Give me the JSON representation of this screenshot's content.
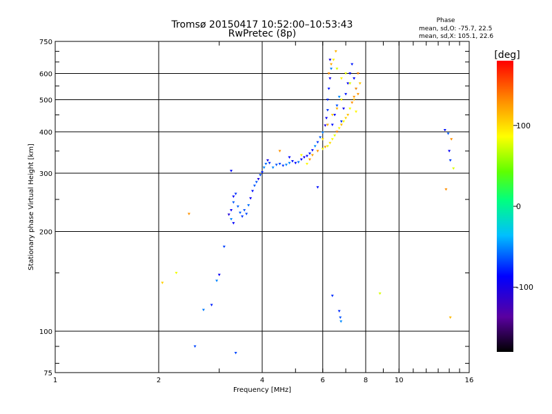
{
  "chart_data": {
    "type": "scatter",
    "title": "Tromsø 20150417 10:52:00–10:53:43",
    "subtitle": "RwPretec (8p)",
    "xlabel": "Frequency [MHz]",
    "ylabel": "Stationary phase Virtual Height [km]",
    "x_scale": "log",
    "y_scale": "log",
    "xlim": [
      1,
      16
    ],
    "ylim": [
      75,
      750
    ],
    "grid": true,
    "x_ticks": [
      {
        "value": 1,
        "label": "1"
      },
      {
        "value": 2,
        "label": "2"
      },
      {
        "value": 4,
        "label": "4"
      },
      {
        "value": 6,
        "label": "6"
      },
      {
        "value": 8,
        "label": "8"
      },
      {
        "value": 10,
        "label": "10"
      },
      {
        "value": 16,
        "label": "16"
      }
    ],
    "y_ticks": [
      {
        "value": 75,
        "label": "75"
      },
      {
        "value": 100,
        "label": "100"
      },
      {
        "value": 200,
        "label": "200"
      },
      {
        "value": 300,
        "label": "300"
      },
      {
        "value": 400,
        "label": "400"
      },
      {
        "value": 500,
        "label": "500"
      },
      {
        "value": 600,
        "label": "600"
      },
      {
        "value": 750,
        "label": "750"
      }
    ],
    "phase_stats": {
      "title": "Phase",
      "line_o": "mean, sd,O: -75.7, 22.5",
      "line_x": "mean, sd,X: 105.1, 22.6"
    },
    "colorbar": {
      "label": "[deg]",
      "range": [
        -180,
        180
      ],
      "ticks": [
        {
          "value": 100,
          "label": "100"
        },
        {
          "value": 0,
          "label": "0"
        },
        {
          "value": -100,
          "label": "-100"
        }
      ]
    },
    "series": [
      {
        "component": "O",
        "points": [
          [
            3.2,
            225
          ],
          [
            3.25,
            218
          ],
          [
            3.3,
            212
          ],
          [
            3.25,
            232
          ],
          [
            3.3,
            245
          ],
          [
            3.35,
            260
          ],
          [
            3.3,
            255
          ],
          [
            3.4,
            238
          ],
          [
            3.45,
            228
          ],
          [
            3.5,
            222
          ],
          [
            3.55,
            232
          ],
          [
            3.6,
            226
          ],
          [
            3.65,
            240
          ],
          [
            3.7,
            252
          ],
          [
            3.75,
            265
          ],
          [
            3.8,
            275
          ],
          [
            3.85,
            282
          ],
          [
            3.9,
            288
          ],
          [
            3.95,
            296
          ],
          [
            4.0,
            302
          ],
          [
            4.05,
            312
          ],
          [
            4.1,
            320
          ],
          [
            4.15,
            328
          ],
          [
            4.2,
            322
          ],
          [
            4.3,
            312
          ],
          [
            4.4,
            318
          ],
          [
            4.5,
            320
          ],
          [
            4.6,
            316
          ],
          [
            4.7,
            318
          ],
          [
            4.8,
            322
          ],
          [
            4.9,
            326
          ],
          [
            5.0,
            322
          ],
          [
            5.1,
            324
          ],
          [
            5.2,
            330
          ],
          [
            5.3,
            335
          ],
          [
            5.4,
            338
          ],
          [
            5.5,
            344
          ],
          [
            5.6,
            352
          ],
          [
            5.7,
            362
          ],
          [
            5.8,
            372
          ],
          [
            5.9,
            385
          ],
          [
            6.0,
            398
          ],
          [
            6.1,
            418
          ],
          [
            6.15,
            440
          ],
          [
            6.2,
            465
          ],
          [
            6.2,
            500
          ],
          [
            6.25,
            540
          ],
          [
            6.3,
            580
          ],
          [
            6.35,
            620
          ],
          [
            6.3,
            660
          ],
          [
            6.4,
            420
          ],
          [
            6.5,
            450
          ],
          [
            6.6,
            480
          ],
          [
            6.7,
            510
          ],
          [
            6.8,
            430
          ],
          [
            6.9,
            470
          ],
          [
            7.0,
            520
          ],
          [
            7.1,
            560
          ],
          [
            7.2,
            600
          ],
          [
            7.3,
            640
          ],
          [
            7.4,
            580
          ],
          [
            7.5,
            540
          ],
          [
            3.1,
            180
          ],
          [
            3.0,
            148
          ],
          [
            2.95,
            142
          ],
          [
            2.85,
            120
          ],
          [
            2.7,
            116
          ],
          [
            2.55,
            90
          ],
          [
            3.35,
            86
          ],
          [
            6.4,
            128
          ],
          [
            6.7,
            115
          ],
          [
            6.75,
            110
          ],
          [
            6.78,
            107
          ],
          [
            13.6,
            405
          ],
          [
            13.9,
            395
          ],
          [
            14.0,
            350
          ],
          [
            14.1,
            328
          ],
          [
            3.25,
            305
          ],
          [
            4.8,
            335
          ],
          [
            5.8,
            272
          ]
        ]
      },
      {
        "component": "X",
        "points": [
          [
            5.6,
            340
          ],
          [
            5.8,
            350
          ],
          [
            6.0,
            355
          ],
          [
            6.1,
            360
          ],
          [
            6.2,
            362
          ],
          [
            6.3,
            370
          ],
          [
            6.4,
            380
          ],
          [
            6.5,
            390
          ],
          [
            6.6,
            400
          ],
          [
            6.7,
            410
          ],
          [
            6.8,
            420
          ],
          [
            6.9,
            430
          ],
          [
            7.0,
            440
          ],
          [
            7.1,
            450
          ],
          [
            7.2,
            470
          ],
          [
            7.3,
            490
          ],
          [
            7.4,
            510
          ],
          [
            7.5,
            540
          ],
          [
            7.6,
            520
          ],
          [
            6.25,
            600
          ],
          [
            6.35,
            640
          ],
          [
            6.45,
            660
          ],
          [
            6.6,
            620
          ],
          [
            6.8,
            580
          ],
          [
            7.0,
            600
          ],
          [
            7.2,
            560
          ],
          [
            7.4,
            500
          ],
          [
            7.5,
            460
          ],
          [
            6.2,
            420
          ],
          [
            6.4,
            450
          ],
          [
            6.6,
            470
          ],
          [
            6.8,
            500
          ],
          [
            5.5,
            330
          ],
          [
            5.4,
            320
          ],
          [
            6.0,
            380
          ],
          [
            2.45,
            226
          ],
          [
            2.25,
            150
          ],
          [
            2.05,
            140
          ],
          [
            8.8,
            130
          ],
          [
            13.7,
            268
          ],
          [
            14.1,
            110
          ],
          [
            14.2,
            380
          ],
          [
            14.4,
            310
          ],
          [
            4.5,
            350
          ],
          [
            5.2,
            340
          ],
          [
            7.6,
            600
          ],
          [
            7.7,
            560
          ],
          [
            6.55,
            700
          ]
        ]
      }
    ]
  }
}
